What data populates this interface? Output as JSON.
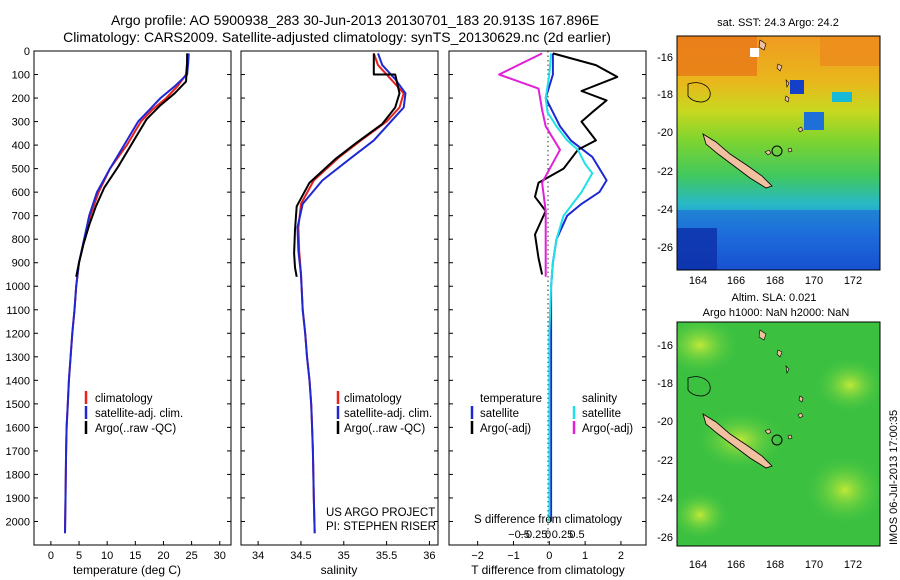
{
  "header": {
    "line1": "Argo profile: AO 5900938_283 30-Jun-2013 20130701_183 20.913S 167.896E",
    "line2": "Climatology: CARS2009. Satellite-adjusted climatology: synTS_20130629.nc (2d earlier)"
  },
  "colors": {
    "climatology": "#e8201e",
    "satellite": "#1e28d2",
    "argo": "#000000",
    "sat_s": "#20e0e8",
    "argo_s": "#e020d8"
  },
  "chart_data": [
    {
      "type": "line",
      "xlabel": "temperature (deg C)",
      "ylabel": "",
      "xlim": [
        -3,
        32
      ],
      "ylim": [
        2100,
        0
      ],
      "xticks": [
        0,
        5,
        10,
        15,
        20,
        25,
        30
      ],
      "yticks": [
        0,
        100,
        200,
        300,
        400,
        500,
        600,
        700,
        800,
        900,
        1000,
        1100,
        1200,
        1300,
        1400,
        1500,
        1600,
        1700,
        1800,
        1900,
        2000
      ],
      "legend": [
        "climatology",
        "satellite-adj. clim.",
        "Argo(..raw -QC)"
      ],
      "series": [
        {
          "name": "climatology",
          "x": [
            24.3,
            24.2,
            24.0,
            22.5,
            20.5,
            18.0,
            16.0,
            13.5,
            10.5,
            8.5,
            7.0,
            6.0,
            5.0,
            4.5,
            4.2,
            3.8,
            3.5,
            3.2,
            3.0,
            2.8,
            2.7,
            2.6,
            2.5
          ],
          "y": [
            10,
            50,
            100,
            150,
            200,
            250,
            300,
            400,
            500,
            600,
            700,
            800,
            900,
            1000,
            1100,
            1200,
            1300,
            1400,
            1500,
            1600,
            1700,
            1900,
            2050
          ]
        },
        {
          "name": "satellite",
          "x": [
            24.5,
            24.4,
            24.2,
            22.0,
            19.5,
            17.5,
            15.5,
            13.0,
            10.5,
            8.2,
            6.8,
            5.9,
            5.0,
            4.5,
            4.2,
            3.8,
            3.5,
            3.2,
            3.0,
            2.8,
            2.7,
            2.6,
            2.5
          ],
          "y": [
            10,
            50,
            100,
            150,
            200,
            250,
            300,
            400,
            500,
            600,
            700,
            800,
            900,
            1000,
            1100,
            1200,
            1300,
            1400,
            1500,
            1600,
            1700,
            1900,
            2050
          ]
        },
        {
          "name": "argo",
          "x": [
            24.2,
            24.2,
            24.1,
            24.0,
            22.0,
            19.5,
            17.0,
            14.5,
            12.0,
            9.5,
            8.0,
            6.8,
            5.8,
            5.0,
            4.5
          ],
          "y": [
            10,
            50,
            100,
            130,
            180,
            230,
            290,
            390,
            490,
            580,
            660,
            740,
            820,
            900,
            960
          ]
        }
      ]
    },
    {
      "type": "line",
      "xlabel": "salinity",
      "ylabel": "",
      "xlim": [
        33.8,
        36.1
      ],
      "ylim": [
        2100,
        0
      ],
      "xticks": [
        34,
        34.5,
        35,
        35.5,
        36
      ],
      "xticklabels": [
        "34",
        "34.5",
        "35",
        "35.5",
        "36"
      ],
      "legend": [
        "climatology",
        "satellite-adj. clim.",
        "Argo(..raw -QC)"
      ],
      "annotations": [
        "US ARGO PROJECT",
        "PI: STEPHEN RISER"
      ],
      "series": [
        {
          "name": "climatology",
          "x": [
            35.35,
            35.4,
            35.55,
            35.7,
            35.65,
            35.5,
            35.2,
            34.95,
            34.65,
            34.5,
            34.47,
            34.48,
            34.5,
            34.52,
            34.55,
            34.57,
            34.6,
            34.62,
            34.63,
            34.64,
            34.65,
            34.66
          ],
          "y": [
            10,
            60,
            120,
            180,
            240,
            300,
            380,
            450,
            550,
            650,
            750,
            850,
            950,
            1100,
            1200,
            1300,
            1400,
            1500,
            1600,
            1700,
            1900,
            2050
          ]
        },
        {
          "name": "satellite",
          "x": [
            35.4,
            35.45,
            35.6,
            35.72,
            35.7,
            35.55,
            35.35,
            35.1,
            34.75,
            34.52,
            34.46,
            34.47,
            34.5,
            34.52,
            34.55,
            34.57,
            34.6,
            34.62,
            34.63,
            34.64,
            34.65,
            34.66
          ],
          "y": [
            10,
            60,
            120,
            180,
            240,
            300,
            380,
            450,
            550,
            650,
            750,
            850,
            950,
            1100,
            1200,
            1300,
            1400,
            1500,
            1600,
            1700,
            1900,
            2050
          ]
        },
        {
          "name": "argo",
          "x": [
            35.35,
            35.35,
            35.6,
            35.65,
            35.6,
            35.45,
            35.15,
            34.9,
            34.6,
            34.45,
            34.43,
            34.42,
            34.43,
            34.45
          ],
          "y": [
            10,
            100,
            100,
            180,
            240,
            310,
            390,
            460,
            560,
            660,
            760,
            860,
            920,
            960
          ]
        }
      ]
    },
    {
      "type": "line",
      "xlabel": "T difference from climatology",
      "xlabel2": "S difference from climatology",
      "xlim": [
        -2.8,
        2.7
      ],
      "ylim": [
        2100,
        0
      ],
      "xticks": [
        -2,
        -1,
        0,
        1,
        2
      ],
      "top_xticks": [
        -0.5,
        -0.25,
        0,
        0.25,
        0.5
      ],
      "top_xticklabels": [
        "−0.5",
        "−0.25",
        "0",
        "0.25",
        "0.5"
      ],
      "legend_titles": [
        "temperature",
        "salinity"
      ],
      "legend": [
        "satellite",
        "Argo(-adj)",
        "satellite",
        "Argo(-adj)"
      ],
      "series": [
        {
          "name": "T satellite",
          "x": [
            0.1,
            0.1,
            0.0,
            -0.1,
            0.1,
            0.3,
            0.6,
            1.2,
            1.6,
            1.4,
            0.9,
            0.5,
            0.2,
            0.1,
            0.05,
            0.05,
            0.05,
            0.05,
            0.05,
            0.05
          ],
          "y": [
            10,
            100,
            150,
            200,
            260,
            320,
            380,
            450,
            550,
            600,
            650,
            700,
            800,
            900,
            1000,
            1200,
            1400,
            1600,
            1800,
            2000
          ]
        },
        {
          "name": "T argo",
          "x": [
            0.1,
            1.3,
            1.9,
            0.9,
            1.6,
            1.2,
            0.9,
            1.1,
            1.3,
            0.8,
            0.6,
            0.4,
            -0.3,
            -0.4,
            -0.1,
            -0.4,
            -0.3,
            -0.2
          ],
          "y": [
            10,
            60,
            110,
            170,
            210,
            260,
            300,
            340,
            380,
            420,
            460,
            500,
            560,
            620,
            680,
            780,
            880,
            950
          ]
        },
        {
          "name": "S satellite",
          "x": [
            0.05,
            0.0,
            -0.1,
            -0.05,
            0.2,
            0.5,
            0.8,
            1.0,
            1.2,
            0.9,
            0.4,
            0.2,
            0.1,
            0.05,
            0.0,
            0.0,
            0.0,
            0.0
          ],
          "y": [
            10,
            100,
            200,
            260,
            320,
            380,
            420,
            480,
            520,
            600,
            700,
            800,
            900,
            1000,
            1200,
            1400,
            1700,
            2000
          ]
        },
        {
          "name": "S argo",
          "x": [
            -0.2,
            -1.4,
            -0.3,
            -0.2,
            -0.1,
            0.3,
            -0.2,
            -0.1,
            -0.1,
            -0.1
          ],
          "y": [
            10,
            100,
            160,
            250,
            320,
            420,
            560,
            680,
            800,
            960
          ]
        }
      ]
    }
  ],
  "maps": {
    "top": {
      "title": "sat. SST: 24.3 Argo: 24.2",
      "xticks": [
        "164",
        "166",
        "168",
        "170",
        "172"
      ],
      "yticks": [
        "-16",
        "-18",
        "-20",
        "-22",
        "-24",
        "-26"
      ],
      "marker": "Argo float position"
    },
    "bottom": {
      "title1": "Altim. SLA: 0.021",
      "title2": "Argo h1000: NaN h2000: NaN",
      "xticks": [
        "164",
        "166",
        "168",
        "170",
        "172"
      ],
      "yticks": [
        "-16",
        "-18",
        "-20",
        "-22",
        "-24",
        "-26"
      ]
    }
  },
  "footer": {
    "stamp": "IMOS 06-Jul-2013 17:00:35"
  }
}
